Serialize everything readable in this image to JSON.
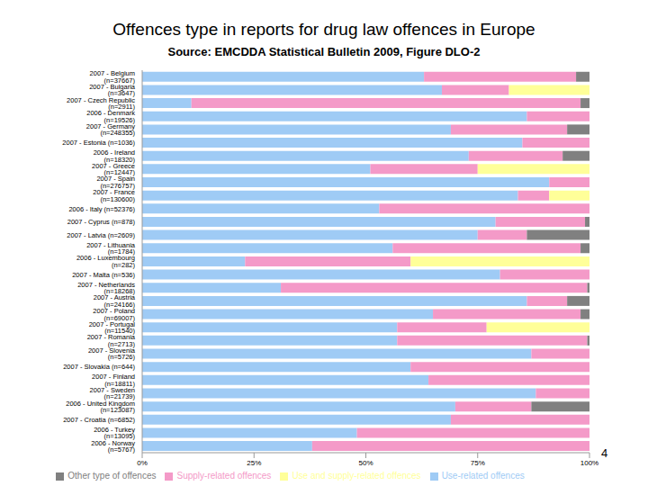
{
  "chart_data": {
    "type": "bar",
    "title": "Offences type in reports for drug law offences in Europe",
    "subtitle": "Source: EMCDDA Statistical Bulletin 2009, Figure DLO-2",
    "orientation": "horizontal",
    "stacked": true,
    "legend": "bottom",
    "grid": false,
    "categories": [
      "2007 - Belgium (n=37667)",
      "2007 - Bulgaria (n=3647)",
      "2007 - Czech Republic (n=2911)",
      "2006 - Denmark (n=19526)",
      "2007 - Germany (n=248355)",
      "2007 - Estonia (n=1036)",
      "2006 - Ireland (n=18320)",
      "2007 - Greece (n=12447)",
      "2007 - Spain (n=276757)",
      "2007 - France (n=130600)",
      "2006 - Italy (n=52376)",
      "2007 - Cyprus (n=878)",
      "2007 - Latvia (n=2609)",
      "2007 - Lithuania (n=1784)",
      "2006 - Luxembourg (n=282)",
      "2007 - Malta (n=536)",
      "2007 - Netherlands (n=18268)",
      "2007 - Austria (n=24166)",
      "2007 - Poland (n=69007)",
      "2007 - Portugal (n=11540)",
      "2007 - Romania (n=2713)",
      "2007 - Slovenia (n=5726)",
      "2007 - Slovakia (n=644)",
      "2007 - Finland (n=18811)",
      "2007 - Sweden (n=21739)",
      "2006 - United Kingdom (n=123087)",
      "2007 - Croatia (n=6852)",
      "2006 - Turkey (n=13095)",
      "2006 - Norway (n=5767)"
    ],
    "series": [
      {
        "name": "Use-related offences",
        "color": "#9fcbf5",
        "values": [
          63,
          67,
          11,
          86,
          69,
          85,
          73,
          51,
          91,
          84,
          53,
          79,
          75,
          56,
          23,
          80,
          31,
          86,
          65,
          57,
          57,
          87,
          60,
          64,
          88,
          70,
          69,
          48,
          38
        ]
      },
      {
        "name": "Supply-related offences",
        "color": "#f49ac8",
        "values": [
          34,
          15,
          87,
          14,
          26,
          15,
          21,
          24,
          9,
          7,
          47,
          20,
          11,
          42,
          37,
          20,
          68.5,
          9,
          33,
          20,
          42.5,
          13,
          40,
          36,
          12,
          17,
          31,
          52,
          62
        ]
      },
      {
        "name": "Use and supply-related offences",
        "color": "#ffff99",
        "values": [
          0,
          18,
          0,
          0,
          0,
          0,
          0,
          25,
          0,
          9,
          0,
          0,
          0,
          0,
          40,
          0,
          0,
          0,
          0,
          23,
          0,
          0,
          0,
          0,
          0,
          0,
          0,
          0,
          0
        ]
      },
      {
        "name": "Other type of offences",
        "color": "#808080",
        "values": [
          3,
          0,
          2,
          0,
          5,
          0,
          6,
          0,
          0,
          0,
          0,
          1,
          14,
          2,
          0,
          0,
          0.5,
          5,
          2,
          0,
          0.5,
          0,
          0,
          0,
          0,
          13,
          0,
          0,
          0
        ]
      }
    ],
    "xlim": [
      0,
      100
    ],
    "xticks": [
      {
        "value": 0,
        "label": "0%"
      },
      {
        "value": 25,
        "label": "25%"
      },
      {
        "value": 50,
        "label": "50%"
      },
      {
        "value": 75,
        "label": "75%"
      },
      {
        "value": 100,
        "label": "100%"
      }
    ],
    "annotations": [
      "4"
    ]
  }
}
